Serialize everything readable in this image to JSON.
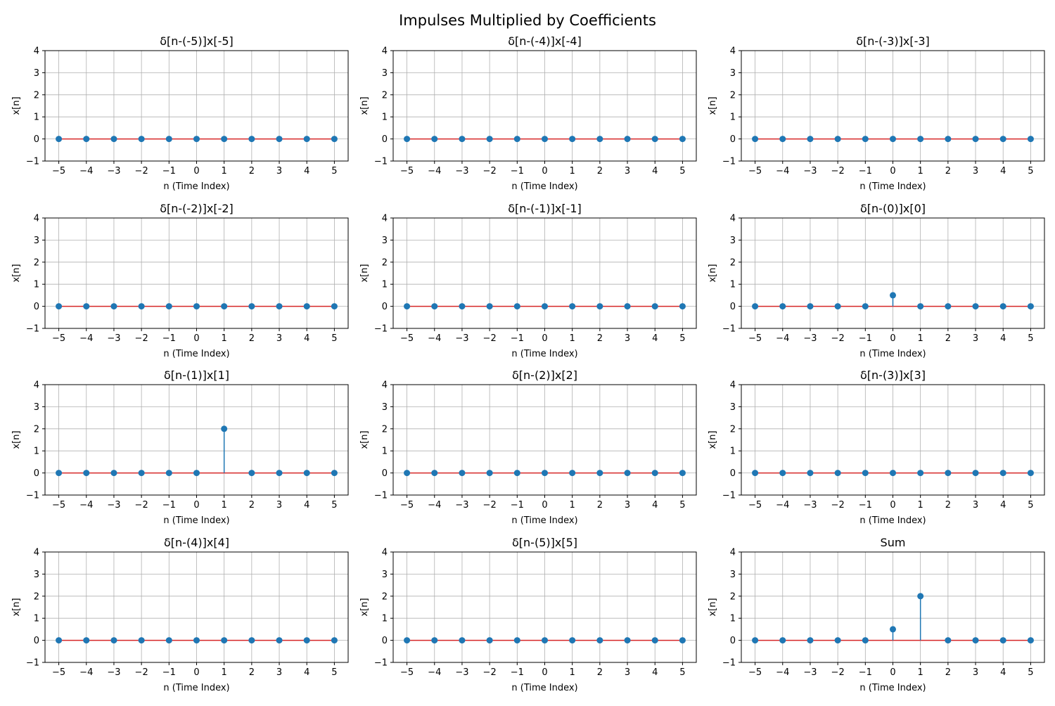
{
  "figure_title": "Impulses Multiplied by Coefficients",
  "colors": {
    "stem": "#1f77b4",
    "baseline": "#d62728",
    "grid": "#b0b0b0",
    "axes": "#000000"
  },
  "chart_data": [
    {
      "type": "stem",
      "title": "δ[n-(-5)]x[-5]",
      "xlabel": "n (Time Index)",
      "ylabel": "x[n]",
      "x": [
        -5,
        -4,
        -3,
        -2,
        -1,
        0,
        1,
        2,
        3,
        4,
        5
      ],
      "y": [
        0,
        0,
        0,
        0,
        0,
        0,
        0,
        0,
        0,
        0,
        0
      ],
      "xticks": [
        "−5",
        "−4",
        "−3",
        "−2",
        "−1",
        "0",
        "1",
        "2",
        "3",
        "4",
        "5"
      ],
      "yticks": [
        "−1",
        "0",
        "1",
        "2",
        "3",
        "4"
      ],
      "xlim": [
        -5.5,
        5.5
      ],
      "ylim": [
        -1,
        4
      ],
      "grid": true
    },
    {
      "type": "stem",
      "title": "δ[n-(-4)]x[-4]",
      "xlabel": "n (Time Index)",
      "ylabel": "x[n]",
      "x": [
        -5,
        -4,
        -3,
        -2,
        -1,
        0,
        1,
        2,
        3,
        4,
        5
      ],
      "y": [
        0,
        0,
        0,
        0,
        0,
        0,
        0,
        0,
        0,
        0,
        0
      ],
      "xticks": [
        "−5",
        "−4",
        "−3",
        "−2",
        "−1",
        "0",
        "1",
        "2",
        "3",
        "4",
        "5"
      ],
      "yticks": [
        "−1",
        "0",
        "1",
        "2",
        "3",
        "4"
      ],
      "xlim": [
        -5.5,
        5.5
      ],
      "ylim": [
        -1,
        4
      ],
      "grid": true
    },
    {
      "type": "stem",
      "title": "δ[n-(-3)]x[-3]",
      "xlabel": "n (Time Index)",
      "ylabel": "x[n]",
      "x": [
        -5,
        -4,
        -3,
        -2,
        -1,
        0,
        1,
        2,
        3,
        4,
        5
      ],
      "y": [
        0,
        0,
        0,
        0,
        0,
        0,
        0,
        0,
        0,
        0,
        0
      ],
      "xticks": [
        "−5",
        "−4",
        "−3",
        "−2",
        "−1",
        "0",
        "1",
        "2",
        "3",
        "4",
        "5"
      ],
      "yticks": [
        "−1",
        "0",
        "1",
        "2",
        "3",
        "4"
      ],
      "xlim": [
        -5.5,
        5.5
      ],
      "ylim": [
        -1,
        4
      ],
      "grid": true
    },
    {
      "type": "stem",
      "title": "δ[n-(-2)]x[-2]",
      "xlabel": "n (Time Index)",
      "ylabel": "x[n]",
      "x": [
        -5,
        -4,
        -3,
        -2,
        -1,
        0,
        1,
        2,
        3,
        4,
        5
      ],
      "y": [
        0,
        0,
        0,
        0,
        0,
        0,
        0,
        0,
        0,
        0,
        0
      ],
      "xticks": [
        "−5",
        "−4",
        "−3",
        "−2",
        "−1",
        "0",
        "1",
        "2",
        "3",
        "4",
        "5"
      ],
      "yticks": [
        "−1",
        "0",
        "1",
        "2",
        "3",
        "4"
      ],
      "xlim": [
        -5.5,
        5.5
      ],
      "ylim": [
        -1,
        4
      ],
      "grid": true
    },
    {
      "type": "stem",
      "title": "δ[n-(-1)]x[-1]",
      "xlabel": "n (Time Index)",
      "ylabel": "x[n]",
      "x": [
        -5,
        -4,
        -3,
        -2,
        -1,
        0,
        1,
        2,
        3,
        4,
        5
      ],
      "y": [
        0,
        0,
        0,
        0,
        0,
        0,
        0,
        0,
        0,
        0,
        0
      ],
      "xticks": [
        "−5",
        "−4",
        "−3",
        "−2",
        "−1",
        "0",
        "1",
        "2",
        "3",
        "4",
        "5"
      ],
      "yticks": [
        "−1",
        "0",
        "1",
        "2",
        "3",
        "4"
      ],
      "xlim": [
        -5.5,
        5.5
      ],
      "ylim": [
        -1,
        4
      ],
      "grid": true
    },
    {
      "type": "stem",
      "title": "δ[n-(0)]x[0]",
      "xlabel": "n (Time Index)",
      "ylabel": "x[n]",
      "x": [
        -5,
        -4,
        -3,
        -2,
        -1,
        0,
        1,
        2,
        3,
        4,
        5
      ],
      "y": [
        0,
        0,
        0,
        0,
        0,
        0.5,
        0,
        0,
        0,
        0,
        0
      ],
      "xticks": [
        "−5",
        "−4",
        "−3",
        "−2",
        "−1",
        "0",
        "1",
        "2",
        "3",
        "4",
        "5"
      ],
      "yticks": [
        "−1",
        "0",
        "1",
        "2",
        "3",
        "4"
      ],
      "xlim": [
        -5.5,
        5.5
      ],
      "ylim": [
        -1,
        4
      ],
      "grid": true
    },
    {
      "type": "stem",
      "title": "δ[n-(1)]x[1]",
      "xlabel": "n (Time Index)",
      "ylabel": "x[n]",
      "x": [
        -5,
        -4,
        -3,
        -2,
        -1,
        0,
        1,
        2,
        3,
        4,
        5
      ],
      "y": [
        0,
        0,
        0,
        0,
        0,
        0,
        2,
        0,
        0,
        0,
        0
      ],
      "xticks": [
        "−5",
        "−4",
        "−3",
        "−2",
        "−1",
        "0",
        "1",
        "2",
        "3",
        "4",
        "5"
      ],
      "yticks": [
        "−1",
        "0",
        "1",
        "2",
        "3",
        "4"
      ],
      "xlim": [
        -5.5,
        5.5
      ],
      "ylim": [
        -1,
        4
      ],
      "grid": true
    },
    {
      "type": "stem",
      "title": "δ[n-(2)]x[2]",
      "xlabel": "n (Time Index)",
      "ylabel": "x[n]",
      "x": [
        -5,
        -4,
        -3,
        -2,
        -1,
        0,
        1,
        2,
        3,
        4,
        5
      ],
      "y": [
        0,
        0,
        0,
        0,
        0,
        0,
        0,
        0,
        0,
        0,
        0
      ],
      "xticks": [
        "−5",
        "−4",
        "−3",
        "−2",
        "−1",
        "0",
        "1",
        "2",
        "3",
        "4",
        "5"
      ],
      "yticks": [
        "−1",
        "0",
        "1",
        "2",
        "3",
        "4"
      ],
      "xlim": [
        -5.5,
        5.5
      ],
      "ylim": [
        -1,
        4
      ],
      "grid": true
    },
    {
      "type": "stem",
      "title": "δ[n-(3)]x[3]",
      "xlabel": "n (Time Index)",
      "ylabel": "x[n]",
      "x": [
        -5,
        -4,
        -3,
        -2,
        -1,
        0,
        1,
        2,
        3,
        4,
        5
      ],
      "y": [
        0,
        0,
        0,
        0,
        0,
        0,
        0,
        0,
        0,
        0,
        0
      ],
      "xticks": [
        "−5",
        "−4",
        "−3",
        "−2",
        "−1",
        "0",
        "1",
        "2",
        "3",
        "4",
        "5"
      ],
      "yticks": [
        "−1",
        "0",
        "1",
        "2",
        "3",
        "4"
      ],
      "xlim": [
        -5.5,
        5.5
      ],
      "ylim": [
        -1,
        4
      ],
      "grid": true
    },
    {
      "type": "stem",
      "title": "δ[n-(4)]x[4]",
      "xlabel": "n (Time Index)",
      "ylabel": "x[n]",
      "x": [
        -5,
        -4,
        -3,
        -2,
        -1,
        0,
        1,
        2,
        3,
        4,
        5
      ],
      "y": [
        0,
        0,
        0,
        0,
        0,
        0,
        0,
        0,
        0,
        0,
        0
      ],
      "xticks": [
        "−5",
        "−4",
        "−3",
        "−2",
        "−1",
        "0",
        "1",
        "2",
        "3",
        "4",
        "5"
      ],
      "yticks": [
        "−1",
        "0",
        "1",
        "2",
        "3",
        "4"
      ],
      "xlim": [
        -5.5,
        5.5
      ],
      "ylim": [
        -1,
        4
      ],
      "grid": true
    },
    {
      "type": "stem",
      "title": "δ[n-(5)]x[5]",
      "xlabel": "n (Time Index)",
      "ylabel": "x[n]",
      "x": [
        -5,
        -4,
        -3,
        -2,
        -1,
        0,
        1,
        2,
        3,
        4,
        5
      ],
      "y": [
        0,
        0,
        0,
        0,
        0,
        0,
        0,
        0,
        0,
        0,
        0
      ],
      "xticks": [
        "−5",
        "−4",
        "−3",
        "−2",
        "−1",
        "0",
        "1",
        "2",
        "3",
        "4",
        "5"
      ],
      "yticks": [
        "−1",
        "0",
        "1",
        "2",
        "3",
        "4"
      ],
      "xlim": [
        -5.5,
        5.5
      ],
      "ylim": [
        -1,
        4
      ],
      "grid": true
    },
    {
      "type": "stem",
      "title": "Sum",
      "xlabel": "n (Time Index)",
      "ylabel": "x[n]",
      "x": [
        -5,
        -4,
        -3,
        -2,
        -1,
        0,
        1,
        2,
        3,
        4,
        5
      ],
      "y": [
        0,
        0,
        0,
        0,
        0,
        0.5,
        2,
        0,
        0,
        0,
        0
      ],
      "xticks": [
        "−5",
        "−4",
        "−3",
        "−2",
        "−1",
        "0",
        "1",
        "2",
        "3",
        "4",
        "5"
      ],
      "yticks": [
        "−1",
        "0",
        "1",
        "2",
        "3",
        "4"
      ],
      "xlim": [
        -5.5,
        5.5
      ],
      "ylim": [
        -1,
        4
      ],
      "grid": true
    }
  ]
}
